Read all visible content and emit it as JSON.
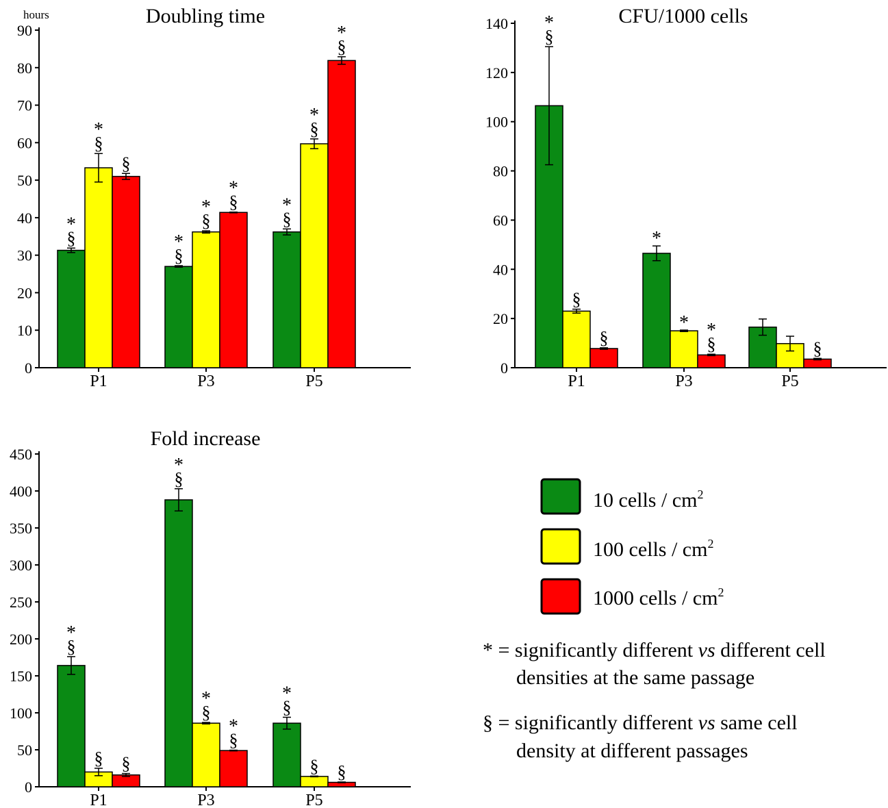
{
  "chart_data": [
    {
      "type": "bar",
      "title": "Doubling time",
      "ylabel": "hours",
      "categories": [
        "P1",
        "P3",
        "P5"
      ],
      "ylim": [
        0,
        90
      ],
      "yticks": [
        0,
        10,
        20,
        30,
        40,
        50,
        60,
        70,
        80,
        90
      ],
      "series": [
        {
          "values": [
            31.3,
            27.0,
            36.2
          ],
          "errors": [
            0.6,
            0.2,
            0.8
          ],
          "marks": [
            "*§",
            "*§",
            "*§"
          ]
        },
        {
          "values": [
            53.3,
            36.2,
            59.7
          ],
          "errors": [
            3.8,
            0.3,
            1.3
          ],
          "marks": [
            "*§",
            "*§",
            "*§"
          ]
        },
        {
          "values": [
            51.0,
            41.4,
            81.9
          ],
          "errors": [
            0.8,
            0.1,
            1.0
          ],
          "marks": [
            "§",
            "*§",
            "*§"
          ]
        }
      ]
    },
    {
      "type": "bar",
      "title": "CFU/1000 cells",
      "ylabel": "",
      "categories": [
        "P1",
        "P3",
        "P5"
      ],
      "ylim": [
        0,
        140
      ],
      "yticks": [
        0,
        20,
        40,
        60,
        80,
        100,
        120,
        140
      ],
      "series": [
        {
          "values": [
            106.5,
            46.5,
            16.5
          ],
          "errors": [
            24.0,
            3.0,
            3.3
          ],
          "marks": [
            "*§",
            "*",
            ""
          ]
        },
        {
          "values": [
            23.0,
            15.0,
            9.8
          ],
          "errors": [
            0.8,
            0.3,
            3.0
          ],
          "marks": [
            "§",
            "*",
            ""
          ]
        },
        {
          "values": [
            7.8,
            5.2,
            3.5
          ],
          "errors": [
            0.3,
            0.3,
            0.3
          ],
          "marks": [
            "§",
            "*§",
            "§"
          ]
        }
      ]
    },
    {
      "type": "bar",
      "title": "Fold increase",
      "ylabel": "",
      "categories": [
        "P1",
        "P3",
        "P5"
      ],
      "ylim": [
        0,
        450
      ],
      "yticks": [
        0,
        50,
        100,
        150,
        200,
        250,
        300,
        350,
        400,
        450
      ],
      "series": [
        {
          "values": [
            164,
            388,
            86
          ],
          "errors": [
            12,
            15,
            8
          ],
          "marks": [
            "*§",
            "*§",
            "*§"
          ]
        },
        {
          "values": [
            20,
            86,
            14
          ],
          "errors": [
            5,
            1,
            0.5
          ],
          "marks": [
            "§",
            "*§",
            "§"
          ]
        },
        {
          "values": [
            16,
            49,
            6
          ],
          "errors": [
            2,
            0.5,
            0.5
          ],
          "marks": [
            "§",
            "*§",
            "§"
          ]
        }
      ]
    }
  ],
  "legend": {
    "items": [
      {
        "label": "10 cells / cm",
        "sup": "2",
        "color": "#0a8a14"
      },
      {
        "label": "100 cells / cm",
        "sup": "2",
        "color": "#ffff00"
      },
      {
        "label": "1000 cells / cm",
        "sup": "2",
        "color": "#ff0000"
      }
    ],
    "notes": [
      {
        "symbol": "*",
        "eq": " = significantly different ",
        "vs": "vs",
        "rest": " different cell",
        "line2": "densities at the same passage"
      },
      {
        "symbol": "§",
        "eq": " = significantly different ",
        "vs": "vs",
        "rest": " same cell",
        "line2": "density at different passages"
      }
    ]
  }
}
